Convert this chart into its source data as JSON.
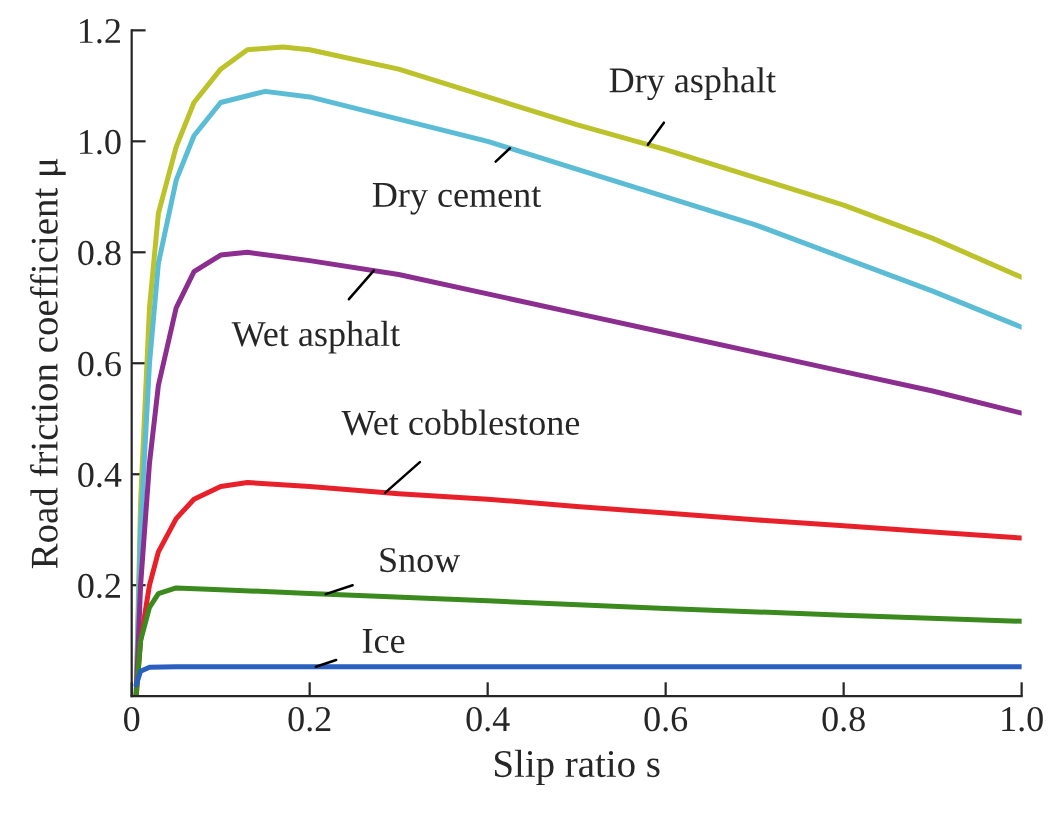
{
  "chart_data": {
    "type": "line",
    "xlabel": "Slip ratio s",
    "ylabel": "Road friction coefficient μ",
    "xlim": [
      0,
      1
    ],
    "ylim": [
      0,
      1.2
    ],
    "xticks": [
      0,
      0.2,
      0.4,
      0.6,
      0.8,
      {
        "value": 1,
        "label": "1.0"
      }
    ],
    "yticks": [
      0.2,
      0.4,
      0.6,
      0.8,
      {
        "value": 1,
        "label": "1.0"
      },
      1.2
    ],
    "grid": false,
    "legend": false,
    "marker": "none",
    "line_style": "solid",
    "series": [
      {
        "name": "Dry asphalt",
        "color": "#bcc22a",
        "x": [
          0.005,
          0.01,
          0.02,
          0.03,
          0.05,
          0.07,
          0.1,
          0.13,
          0.17,
          0.2,
          0.3,
          0.4,
          0.5,
          0.6,
          0.7,
          0.8,
          0.9,
          1.0
        ],
        "values": [
          0,
          0.35,
          0.7,
          0.87,
          0.99,
          1.07,
          1.13,
          1.165,
          1.17,
          1.165,
          1.13,
          1.08,
          1.03,
          0.985,
          0.935,
          0.885,
          0.825,
          0.755
        ]
      },
      {
        "name": "Dry cement",
        "color": "#5bbcd6",
        "x": [
          0.005,
          0.01,
          0.02,
          0.03,
          0.05,
          0.07,
          0.1,
          0.15,
          0.2,
          0.3,
          0.4,
          0.5,
          0.6,
          0.7,
          0.8,
          0.9,
          1.0
        ],
        "values": [
          0,
          0.3,
          0.6,
          0.78,
          0.93,
          1.01,
          1.07,
          1.09,
          1.08,
          1.04,
          1.0,
          0.95,
          0.9,
          0.85,
          0.79,
          0.73,
          0.665
        ]
      },
      {
        "name": "Wet asphalt",
        "color": "#8b2e8f",
        "x": [
          0.005,
          0.01,
          0.02,
          0.03,
          0.05,
          0.07,
          0.1,
          0.13,
          0.2,
          0.3,
          0.4,
          0.5,
          0.6,
          0.7,
          0.8,
          0.9,
          1.0
        ],
        "values": [
          0,
          0.2,
          0.42,
          0.56,
          0.7,
          0.765,
          0.795,
          0.8,
          0.785,
          0.76,
          0.725,
          0.69,
          0.655,
          0.62,
          0.585,
          0.55,
          0.51
        ]
      },
      {
        "name": "Wet cobblestone",
        "color": "#e8202a",
        "x": [
          0.005,
          0.01,
          0.02,
          0.03,
          0.05,
          0.07,
          0.1,
          0.13,
          0.2,
          0.3,
          0.4,
          0.5,
          0.6,
          0.7,
          0.8,
          0.9,
          1.0
        ],
        "values": [
          0,
          0.1,
          0.2,
          0.26,
          0.32,
          0.355,
          0.378,
          0.385,
          0.378,
          0.365,
          0.355,
          0.342,
          0.33,
          0.318,
          0.307,
          0.296,
          0.285
        ]
      },
      {
        "name": "Snow",
        "color": "#3a8a1e",
        "x": [
          0.005,
          0.01,
          0.02,
          0.03,
          0.05,
          0.1,
          0.2,
          0.4,
          0.6,
          0.8,
          1.0
        ],
        "values": [
          0,
          0.1,
          0.16,
          0.185,
          0.195,
          0.192,
          0.185,
          0.172,
          0.158,
          0.146,
          0.135
        ]
      },
      {
        "name": "Ice",
        "color": "#2a5fc0",
        "x": [
          0.005,
          0.01,
          0.02,
          0.05,
          1.0
        ],
        "values": [
          0.02,
          0.045,
          0.052,
          0.053,
          0.053
        ]
      }
    ]
  }
}
